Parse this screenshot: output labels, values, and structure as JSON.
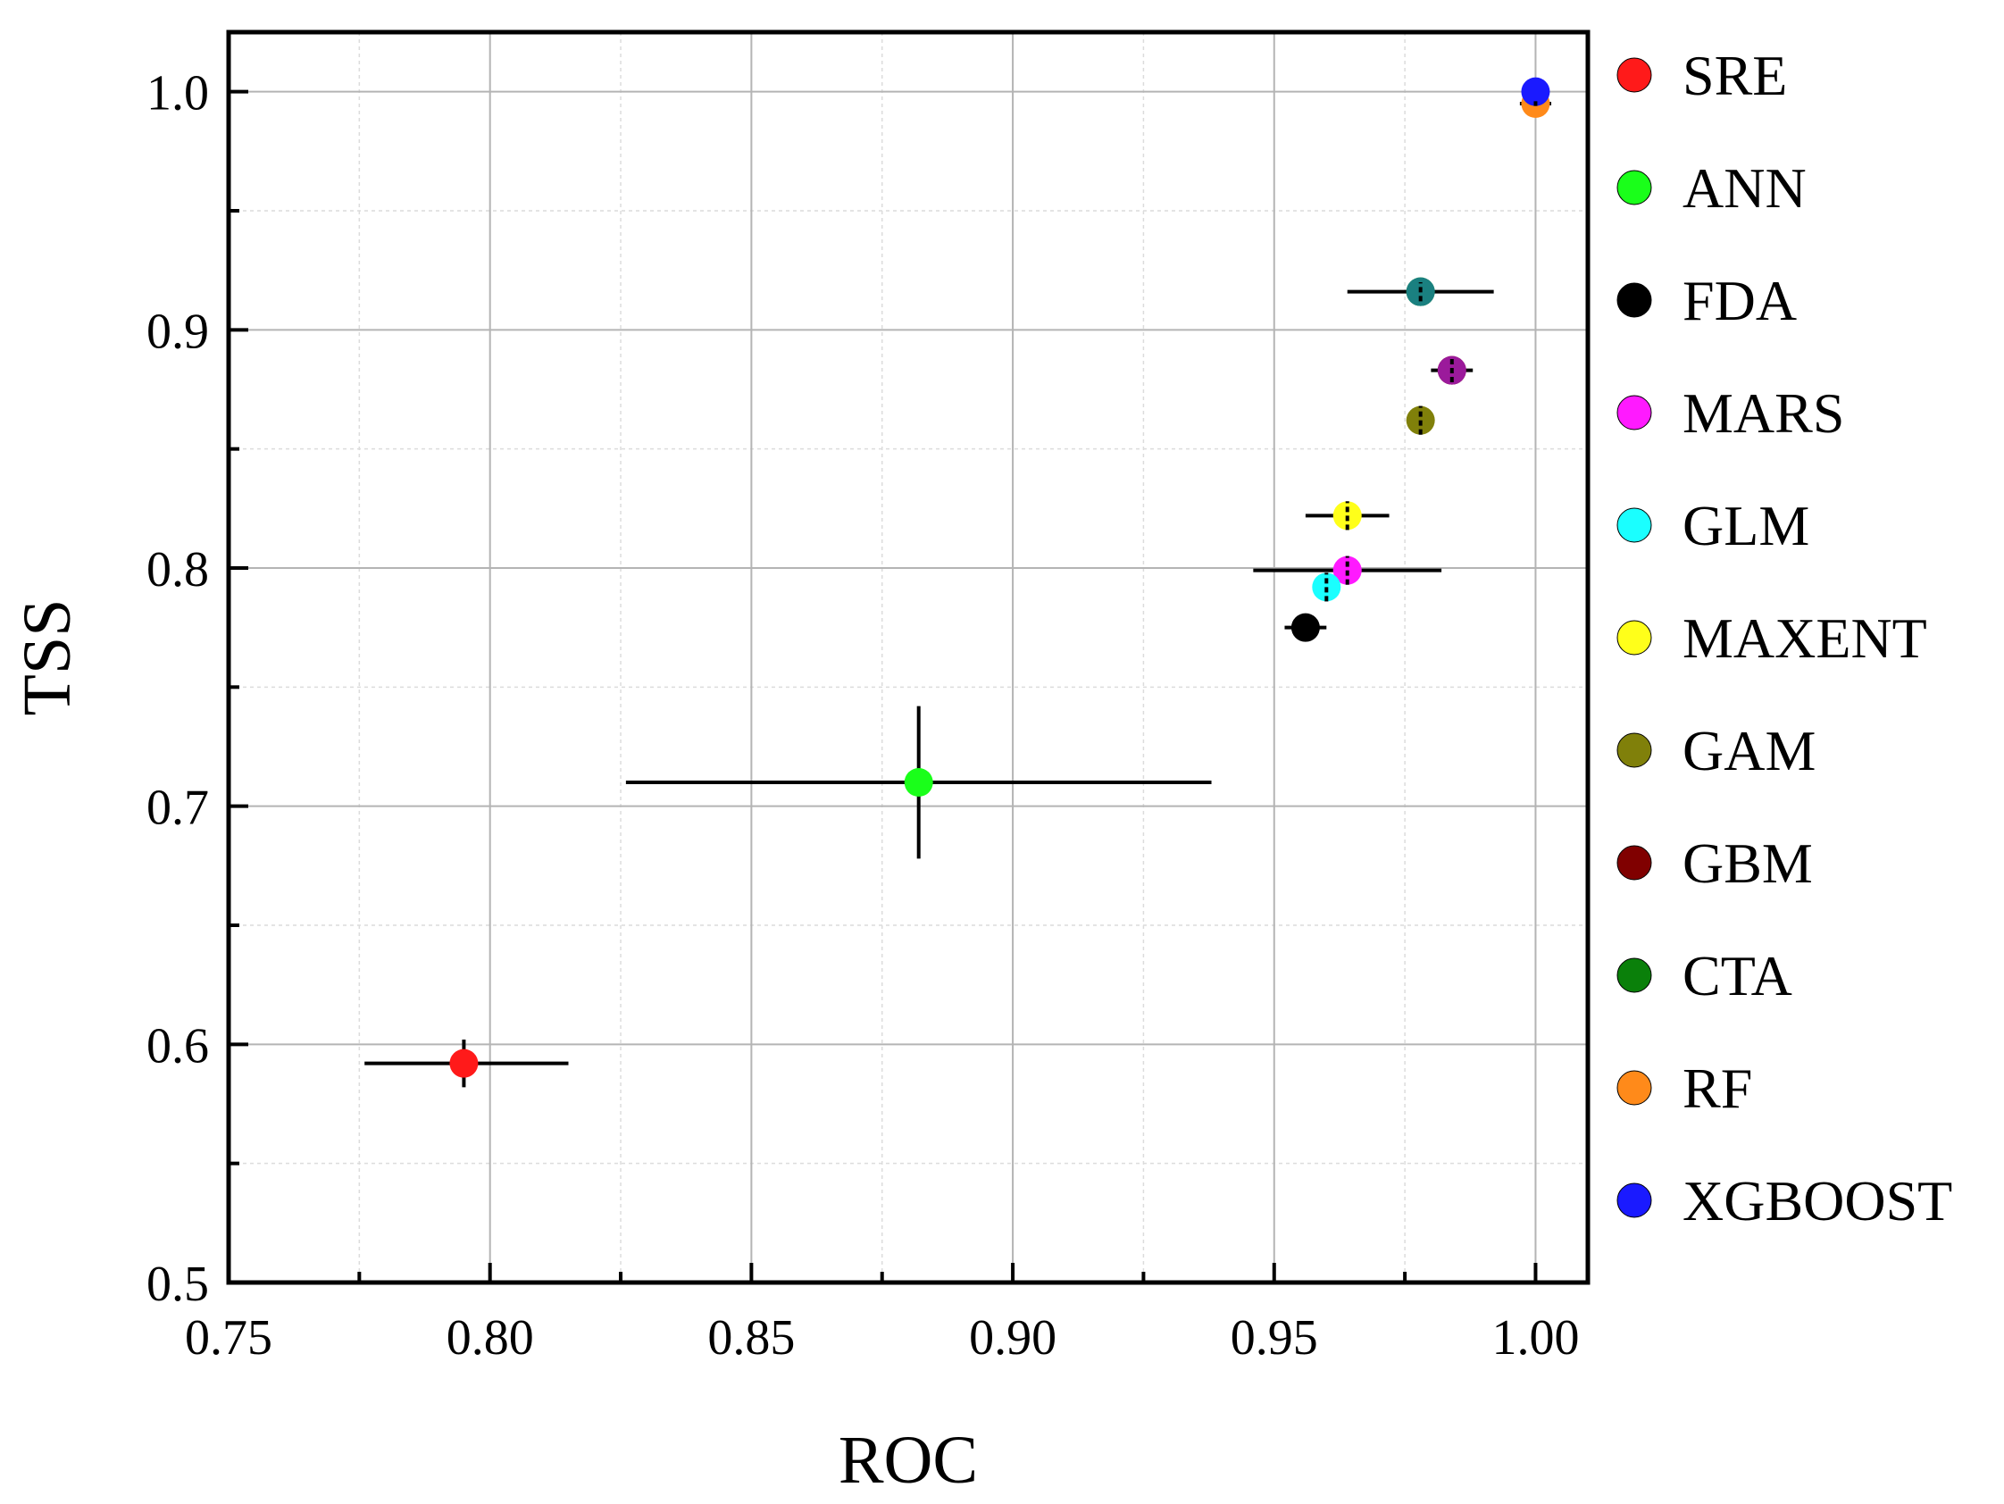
{
  "chart_data": {
    "type": "scatter",
    "title": "",
    "xlabel": "ROC",
    "ylabel": "TSS",
    "xlim": [
      0.75,
      1.01
    ],
    "ylim": [
      0.5,
      1.025
    ],
    "xticks": [
      0.75,
      0.8,
      0.85,
      0.9,
      0.95,
      1.0
    ],
    "xtick_labels": [
      "0.75",
      "0.80",
      "0.85",
      "0.90",
      "0.95",
      "1.00"
    ],
    "xminor": [
      0.775,
      0.825,
      0.875,
      0.925,
      0.975
    ],
    "yticks": [
      0.5,
      0.6,
      0.7,
      0.8,
      0.9,
      1.0
    ],
    "ytick_labels": [
      "0.5",
      "0.6",
      "0.7",
      "0.8",
      "0.9",
      "1.0"
    ],
    "yminor": [
      0.55,
      0.65,
      0.75,
      0.85,
      0.95
    ],
    "grid": true,
    "legend_position": "right",
    "series": [
      {
        "name": "SRE",
        "color": "#ff1a1a",
        "x": 0.795,
        "y": 0.592,
        "xerr": [
          0.776,
          0.815
        ],
        "yerr": [
          0.582,
          0.602
        ]
      },
      {
        "name": "ANN",
        "color": "#1aff1a",
        "x": 0.882,
        "y": 0.71,
        "xerr": [
          0.826,
          0.938
        ],
        "yerr": [
          0.678,
          0.742
        ]
      },
      {
        "name": "FDA",
        "color": "#000000",
        "x": 0.956,
        "y": 0.775,
        "xerr": [
          0.952,
          0.96
        ],
        "yerr": [
          0.77,
          0.78
        ]
      },
      {
        "name": "MARS",
        "color": "#ff1aff",
        "x": 0.964,
        "y": 0.799,
        "xerr": [
          0.946,
          0.982
        ],
        "yerr": [
          0.793,
          0.805
        ]
      },
      {
        "name": "GLM",
        "color": "#1affff",
        "x": 0.96,
        "y": 0.792,
        "xerr": [
          0.958,
          0.962
        ],
        "yerr": [
          0.786,
          0.798
        ]
      },
      {
        "name": "MAXENT",
        "color": "#ffff1a",
        "x": 0.964,
        "y": 0.822,
        "xerr": [
          0.956,
          0.972
        ],
        "yerr": [
          0.816,
          0.828
        ]
      },
      {
        "name": "GAM",
        "color": "#80800a",
        "x": 0.978,
        "y": 0.862,
        "xerr": [
          0.976,
          0.98
        ],
        "yerr": [
          0.856,
          0.868
        ]
      },
      {
        "name": "GBM",
        "color": "#800000",
        "x": 0.984,
        "y": 0.883,
        "xerr": [
          0.98,
          0.988
        ],
        "yerr": [
          0.878,
          0.888
        ]
      },
      {
        "name": "CTA",
        "color": "#0a800a",
        "x": 0.978,
        "y": 0.916,
        "xerr": [
          0.964,
          0.992
        ],
        "yerr": [
          0.912,
          0.92
        ]
      },
      {
        "name": "RF",
        "color": "#ff8a1a",
        "x": 1.0,
        "y": 0.995,
        "xerr": [
          0.997,
          1.003
        ],
        "yerr": [
          0.994,
          0.996
        ]
      },
      {
        "name": "XGBOOST",
        "color": "#1a1aff",
        "x": 1.0,
        "y": 1.0,
        "xerr": [
          1.0,
          1.0
        ],
        "yerr": [
          1.0,
          1.0
        ]
      }
    ],
    "overlay_markers": [
      {
        "name": "MARS-over-GBM",
        "color": "#9b1a9b",
        "x": 0.984,
        "y": 0.883
      },
      {
        "name": "CTA-teal",
        "color": "#1a8080",
        "x": 0.978,
        "y": 0.916
      }
    ]
  }
}
